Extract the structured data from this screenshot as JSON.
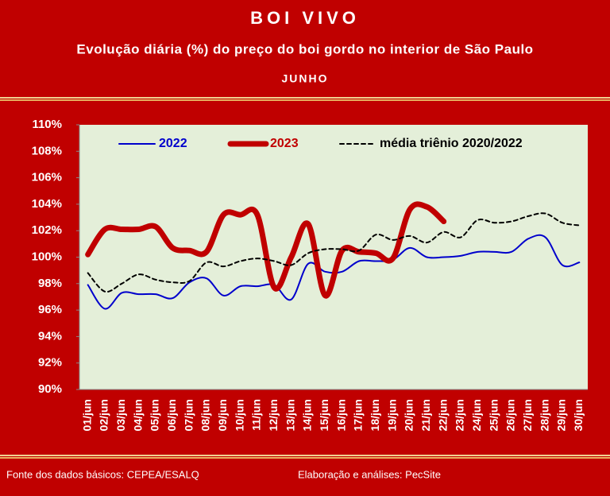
{
  "chart_data": {
    "type": "line",
    "title": "BOI VIVO",
    "subtitle": "Evolução diária (%) do preço do boi gordo no interior de São Paulo",
    "period": "JUNHO",
    "categories": [
      "01/jun",
      "02/jun",
      "03/jun",
      "04/jun",
      "05/jun",
      "06/jun",
      "07/jun",
      "08/jun",
      "09/jun",
      "10/jun",
      "11/jun",
      "12/jun",
      "13/jun",
      "14/jun",
      "15/jun",
      "16/jun",
      "17/jun",
      "18/jun",
      "19/jun",
      "20/jun",
      "21/jun",
      "22/jun",
      "23/jun",
      "24/jun",
      "25/jun",
      "26/jun",
      "27/jun",
      "28/jun",
      "29/jun",
      "30/jun"
    ],
    "series": [
      {
        "name": "2022",
        "color": "#0000cc",
        "width": 2,
        "dash": false,
        "values": [
          97.9,
          96.1,
          97.3,
          97.2,
          97.2,
          96.9,
          98.1,
          98.4,
          97.1,
          97.8,
          97.8,
          97.9,
          96.8,
          99.5,
          98.9,
          98.9,
          99.7,
          99.7,
          99.8,
          100.7,
          100.0,
          100.0,
          100.1,
          100.4,
          100.4,
          100.4,
          101.4,
          101.5,
          99.4,
          99.6
        ]
      },
      {
        "name": "2023",
        "color": "#c00000",
        "width": 7,
        "dash": false,
        "values": [
          100.2,
          102.1,
          102.1,
          102.1,
          102.3,
          100.7,
          100.5,
          100.4,
          103.2,
          103.2,
          103.2,
          97.7,
          100.0,
          102.5,
          97.1,
          100.5,
          100.4,
          100.3,
          99.9,
          103.6,
          103.8,
          102.7,
          null,
          null,
          null,
          null,
          null,
          null,
          null,
          null
        ]
      },
      {
        "name": "média triênio 2020/2022",
        "color": "#000000",
        "width": 2,
        "dash": true,
        "values": [
          98.8,
          97.4,
          98.0,
          98.7,
          98.3,
          98.1,
          98.2,
          99.6,
          99.3,
          99.7,
          99.9,
          99.7,
          99.4,
          100.3,
          100.6,
          100.6,
          100.5,
          101.7,
          101.3,
          101.6,
          101.1,
          101.9,
          101.5,
          102.8,
          102.6,
          102.7,
          103.1,
          103.3,
          102.6,
          102.4
        ]
      }
    ],
    "ylim": [
      90,
      110
    ],
    "yticks": [
      {
        "value": 90,
        "label": "90%"
      },
      {
        "value": 92,
        "label": "92%"
      },
      {
        "value": 94,
        "label": "94%"
      },
      {
        "value": 96,
        "label": "96%"
      },
      {
        "value": 98,
        "label": "98%"
      },
      {
        "value": 100,
        "label": "100%"
      },
      {
        "value": 102,
        "label": "102%"
      },
      {
        "value": 104,
        "label": "104%"
      },
      {
        "value": 106,
        "label": "106%"
      },
      {
        "value": 108,
        "label": "108%"
      },
      {
        "value": 110,
        "label": "110%"
      }
    ],
    "grid": false,
    "legend": "top",
    "source": "Fonte dos dados básicos: CEPEA/ESALQ",
    "credit": "Elaboração e análises: PecSite"
  }
}
